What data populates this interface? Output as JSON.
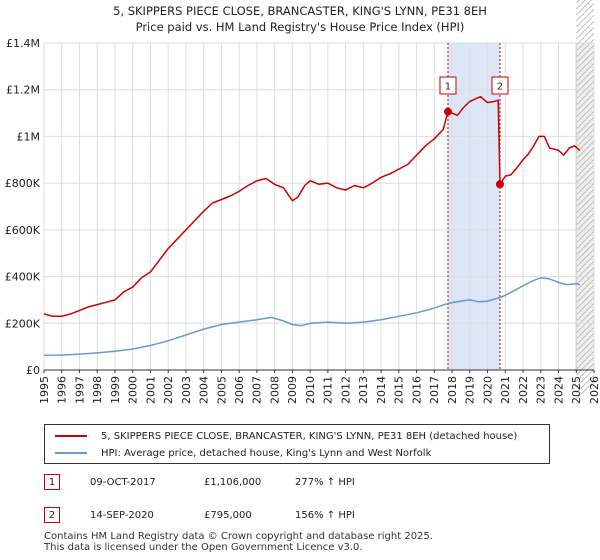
{
  "chart_data": {
    "type": "line",
    "title": "5, SKIPPERS PIECE CLOSE, BRANCASTER, KING'S LYNN, PE31 8EH",
    "subtitle": "Price paid vs. HM Land Registry's House Price Index (HPI)",
    "xlim": [
      1995,
      2026
    ],
    "ylim": [
      0,
      1400000
    ],
    "x_ticks": [
      1995,
      1996,
      1997,
      1998,
      1999,
      2000,
      2001,
      2002,
      2003,
      2004,
      2005,
      2006,
      2007,
      2008,
      2009,
      2010,
      2011,
      2012,
      2013,
      2014,
      2015,
      2016,
      2017,
      2018,
      2019,
      2020,
      2021,
      2022,
      2023,
      2024,
      2025,
      2026
    ],
    "y_ticks": [
      {
        "value": 0,
        "label": "£0"
      },
      {
        "value": 200000,
        "label": "£200K"
      },
      {
        "value": 400000,
        "label": "£400K"
      },
      {
        "value": 600000,
        "label": "£600K"
      },
      {
        "value": 800000,
        "label": "£800K"
      },
      {
        "value": 1000000,
        "label": "£1M"
      },
      {
        "value": 1200000,
        "label": "£1.2M"
      },
      {
        "value": 1400000,
        "label": "£1.4M"
      }
    ],
    "grid": true,
    "shaded_range": [
      2017.77,
      2020.7
    ],
    "forecast_from": 2025.0,
    "series": [
      {
        "name": "5, SKIPPERS PIECE CLOSE, BRANCASTER, KING'S LYNN, PE31 8EH (detached house)",
        "color": "#cc0000",
        "x": [
          1995.0,
          1995.5,
          1996.0,
          1996.5,
          1997.0,
          1997.5,
          1998.0,
          1998.5,
          1999.0,
          1999.5,
          2000.0,
          2000.5,
          2001.0,
          2001.5,
          2002.0,
          2002.5,
          2003.0,
          2003.5,
          2004.0,
          2004.5,
          2005.0,
          2005.5,
          2006.0,
          2006.5,
          2007.0,
          2007.5,
          2008.0,
          2008.5,
          2009.0,
          2009.3,
          2009.7,
          2010.0,
          2010.5,
          2011.0,
          2011.5,
          2012.0,
          2012.5,
          2013.0,
          2013.5,
          2014.0,
          2014.5,
          2015.0,
          2015.5,
          2016.0,
          2016.5,
          2017.0,
          2017.5,
          2017.77,
          2018.0,
          2018.3,
          2018.6,
          2019.0,
          2019.3,
          2019.6,
          2020.0,
          2020.4,
          2020.6,
          2020.7,
          2021.0,
          2021.3,
          2021.6,
          2022.0,
          2022.3,
          2022.6,
          2022.9,
          2023.2,
          2023.5,
          2023.8,
          2024.0,
          2024.3,
          2024.6,
          2024.9,
          2025.2
        ],
        "y": [
          240000,
          230000,
          230000,
          240000,
          255000,
          270000,
          280000,
          290000,
          300000,
          335000,
          355000,
          395000,
          420000,
          470000,
          520000,
          560000,
          600000,
          640000,
          680000,
          715000,
          730000,
          745000,
          765000,
          790000,
          810000,
          820000,
          795000,
          780000,
          725000,
          740000,
          790000,
          810000,
          795000,
          800000,
          780000,
          770000,
          790000,
          780000,
          800000,
          825000,
          840000,
          860000,
          880000,
          920000,
          960000,
          990000,
          1030000,
          1106000,
          1100000,
          1090000,
          1120000,
          1150000,
          1160000,
          1170000,
          1145000,
          1150000,
          1155000,
          795000,
          830000,
          835000,
          860000,
          900000,
          925000,
          960000,
          1000000,
          1000000,
          950000,
          945000,
          940000,
          920000,
          950000,
          960000,
          940000
        ]
      },
      {
        "name": "HPI: Average price, detached house, King's Lynn and West Norfolk",
        "color": "#6a99cc",
        "x": [
          1995.0,
          1996.0,
          1997.0,
          1998.0,
          1999.0,
          2000.0,
          2001.0,
          2002.0,
          2003.0,
          2004.0,
          2005.0,
          2006.0,
          2007.0,
          2007.8,
          2008.5,
          2009.0,
          2009.5,
          2010.0,
          2011.0,
          2012.0,
          2013.0,
          2014.0,
          2015.0,
          2016.0,
          2017.0,
          2017.77,
          2018.5,
          2019.0,
          2019.5,
          2020.0,
          2020.7,
          2021.0,
          2021.5,
          2022.0,
          2022.5,
          2023.0,
          2023.5,
          2024.0,
          2024.5,
          2025.0,
          2025.2
        ],
        "y": [
          63000,
          64000,
          68000,
          73000,
          80000,
          90000,
          105000,
          125000,
          150000,
          175000,
          195000,
          205000,
          215000,
          225000,
          210000,
          195000,
          190000,
          200000,
          205000,
          200000,
          205000,
          215000,
          230000,
          245000,
          265000,
          285000,
          295000,
          300000,
          292000,
          295000,
          310000,
          320000,
          340000,
          360000,
          380000,
          395000,
          390000,
          375000,
          365000,
          370000,
          365000
        ]
      }
    ],
    "annotations": [
      {
        "label": "1",
        "x": 2017.77,
        "y": 1106000
      },
      {
        "label": "2",
        "x": 2020.7,
        "y": 795000
      }
    ]
  },
  "legend": [
    {
      "label": "5, SKIPPERS PIECE CLOSE, BRANCASTER, KING'S LYNN, PE31 8EH (detached house)",
      "color": "#cc0000"
    },
    {
      "label": "HPI: Average price, detached house, King's Lynn and West Norfolk",
      "color": "#6a99cc"
    }
  ],
  "transactions": [
    {
      "marker": "1",
      "date": "09-OCT-2017",
      "price": "£1,106,000",
      "hpi": "277% ↑ HPI"
    },
    {
      "marker": "2",
      "date": "14-SEP-2020",
      "price": "£795,000",
      "hpi": "156% ↑ HPI"
    }
  ],
  "footer": {
    "line1": "Contains HM Land Registry data © Crown copyright and database right 2025.",
    "line2": "This data is licensed under the Open Government Licence v3.0."
  }
}
